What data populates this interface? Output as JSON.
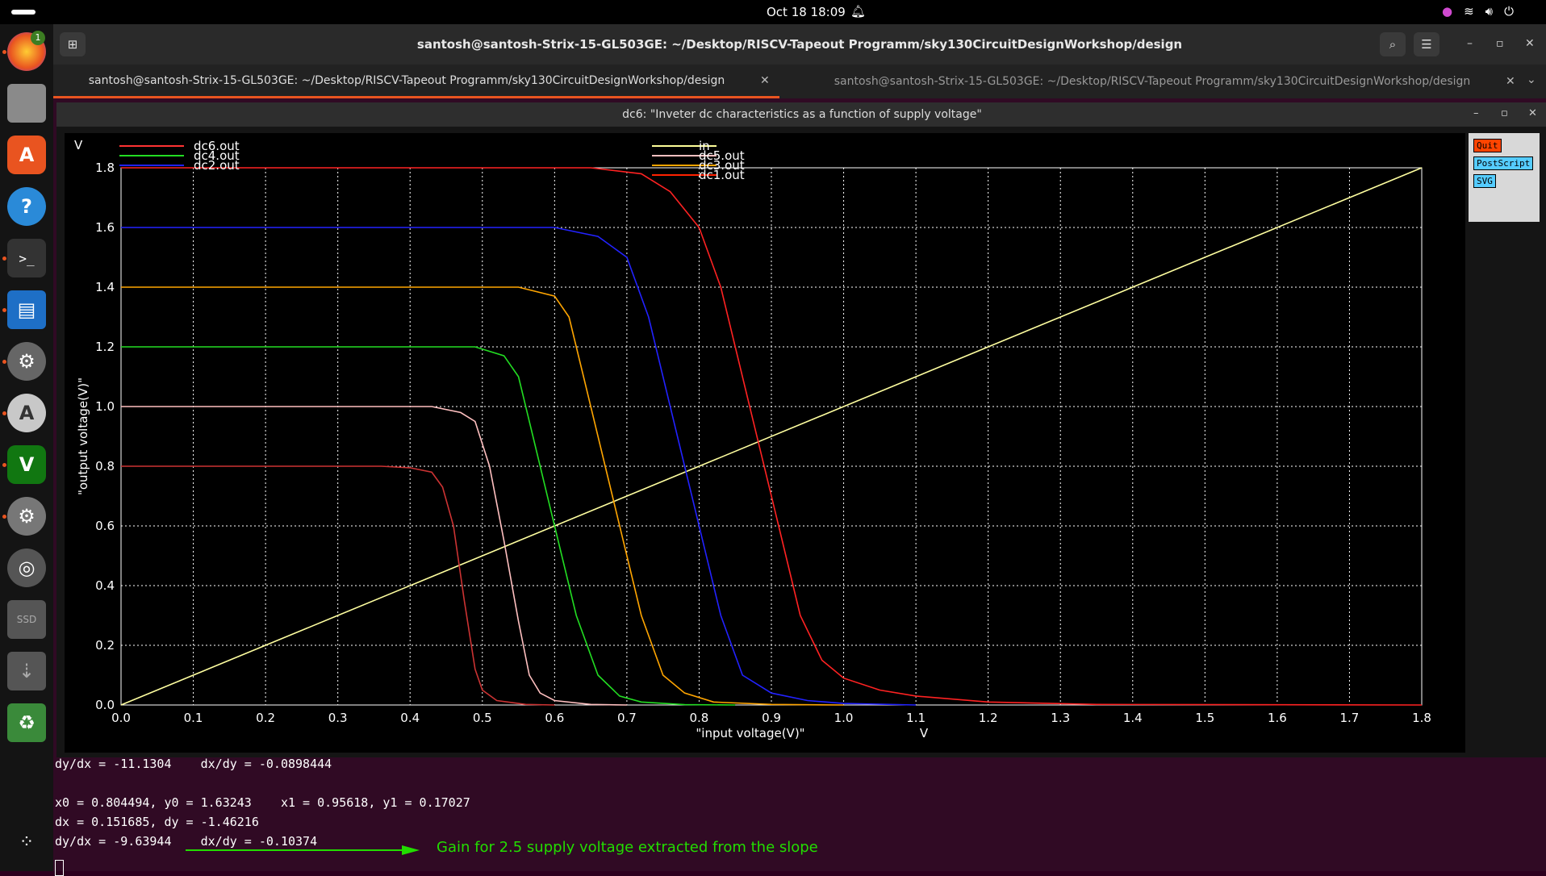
{
  "topbar": {
    "clock": "Oct 18  18:09"
  },
  "dock": {
    "notification_badge": "1",
    "items": [
      "firefox-icon",
      "files-icon",
      "app-center-icon",
      "help-icon",
      "terminal-icon",
      "writer-icon",
      "settings-gear-icon",
      "archive-icon",
      "vim-icon",
      "settings-icon",
      "disc-icon",
      "ssd-icon",
      "usb-icon",
      "trash-icon",
      "apps-grid-icon"
    ],
    "ssd_label": "SSD"
  },
  "terminal": {
    "title": "santosh@santosh-Strix-15-GL503GE: ~/Desktop/RISCV-Tapeout Programm/sky130CircuitDesignWorkshop/design",
    "tabs": [
      "santosh@santosh-Strix-15-GL503GE: ~/Desktop/RISCV-Tapeout Programm/sky130CircuitDesignWorkshop/design",
      "santosh@santosh-Strix-15-GL503GE: ~/Desktop/RISCV-Tapeout Programm/sky130CircuitDesignWorkshop/design"
    ],
    "lines": [
      "dy/dx = -11.1304    dx/dy = -0.0898444",
      "",
      "x0 = 0.804494, y0 = 1.63243    x1 = 0.95618, y1 = 0.17027",
      "dx = 0.151685, dy = -1.46216",
      "dy/dx = -9.63944    dx/dy = -0.10374"
    ],
    "annotation": "Gain for 2.5 supply voltage extracted from the slope",
    "annotation_color": "#22dd00"
  },
  "plot_window": {
    "title": "dc6: \"Inveter dc characteristics as a function of supply voltage\"",
    "buttons": {
      "quit": "Quit",
      "postscript": "PostScript",
      "svg": "SVG"
    }
  },
  "chart_data": {
    "type": "line",
    "xlabel": "\"input voltage(V)\"",
    "ylabel": "\"output voltage(V)\"",
    "x_unit": "V",
    "y_unit": "V",
    "xlim": [
      0,
      1.8
    ],
    "ylim": [
      0,
      1.8
    ],
    "grid": true,
    "x_ticks": [
      "0.0",
      "0.1",
      "0.2",
      "0.3",
      "0.4",
      "0.5",
      "0.6",
      "0.7",
      "0.8",
      "0.9",
      "1.0",
      "1.1",
      "1.2",
      "1.3",
      "1.4",
      "1.5",
      "1.6",
      "1.7",
      "1.8"
    ],
    "y_ticks": [
      "0.0",
      "0.2",
      "0.4",
      "0.6",
      "0.8",
      "1.0",
      "1.2",
      "1.4",
      "1.6",
      "1.8"
    ],
    "legend_left": [
      {
        "name": "dc6.out",
        "color": "#ff3333"
      },
      {
        "name": "dc4.out",
        "color": "#22dd22"
      },
      {
        "name": "dc2.out",
        "color": "#2222ff"
      }
    ],
    "legend_right": [
      {
        "name": "in",
        "color": "#ffff99"
      },
      {
        "name": "dc5.out",
        "color": "#ffc0c0"
      },
      {
        "name": "dc3.out",
        "color": "#ffa500"
      },
      {
        "name": "dc1.out",
        "color": "#ff2200"
      }
    ],
    "series": [
      {
        "name": "in",
        "color": "#ffffa0",
        "points": [
          [
            0,
            0
          ],
          [
            1.8,
            1.8
          ]
        ]
      },
      {
        "name": "dc6.out",
        "color": "#cc3333",
        "points": [
          [
            0,
            0.8
          ],
          [
            0.36,
            0.8
          ],
          [
            0.4,
            0.795
          ],
          [
            0.43,
            0.78
          ],
          [
            0.445,
            0.73
          ],
          [
            0.46,
            0.6
          ],
          [
            0.475,
            0.35
          ],
          [
            0.49,
            0.12
          ],
          [
            0.5,
            0.05
          ],
          [
            0.52,
            0.015
          ],
          [
            0.56,
            0.002
          ],
          [
            0.6,
            0
          ]
        ]
      },
      {
        "name": "dc5.out",
        "color": "#ffc0c0",
        "points": [
          [
            0,
            1.0
          ],
          [
            0.43,
            1.0
          ],
          [
            0.47,
            0.98
          ],
          [
            0.49,
            0.95
          ],
          [
            0.51,
            0.8
          ],
          [
            0.53,
            0.55
          ],
          [
            0.55,
            0.28
          ],
          [
            0.565,
            0.1
          ],
          [
            0.58,
            0.04
          ],
          [
            0.6,
            0.015
          ],
          [
            0.65,
            0.002
          ],
          [
            0.7,
            0
          ]
        ]
      },
      {
        "name": "dc4.out",
        "color": "#22dd22",
        "points": [
          [
            0,
            1.2
          ],
          [
            0.49,
            1.2
          ],
          [
            0.53,
            1.17
          ],
          [
            0.55,
            1.1
          ],
          [
            0.57,
            0.9
          ],
          [
            0.6,
            0.6
          ],
          [
            0.63,
            0.3
          ],
          [
            0.66,
            0.1
          ],
          [
            0.69,
            0.03
          ],
          [
            0.72,
            0.01
          ],
          [
            0.78,
            0.001
          ],
          [
            0.85,
            0
          ]
        ]
      },
      {
        "name": "dc3.out",
        "color": "#ffa500",
        "points": [
          [
            0,
            1.4
          ],
          [
            0.55,
            1.4
          ],
          [
            0.6,
            1.37
          ],
          [
            0.62,
            1.3
          ],
          [
            0.64,
            1.1
          ],
          [
            0.68,
            0.7
          ],
          [
            0.72,
            0.3
          ],
          [
            0.75,
            0.1
          ],
          [
            0.78,
            0.04
          ],
          [
            0.82,
            0.01
          ],
          [
            0.9,
            0.002
          ],
          [
            1.0,
            0
          ]
        ]
      },
      {
        "name": "dc2.out",
        "color": "#2222ff",
        "points": [
          [
            0,
            1.6
          ],
          [
            0.6,
            1.6
          ],
          [
            0.66,
            1.57
          ],
          [
            0.7,
            1.5
          ],
          [
            0.73,
            1.3
          ],
          [
            0.78,
            0.8
          ],
          [
            0.83,
            0.3
          ],
          [
            0.86,
            0.1
          ],
          [
            0.9,
            0.04
          ],
          [
            0.95,
            0.015
          ],
          [
            1.0,
            0.005
          ],
          [
            1.1,
            0
          ]
        ]
      },
      {
        "name": "dc1.out",
        "color": "#ff2222",
        "points": [
          [
            0,
            1.8
          ],
          [
            0.65,
            1.8
          ],
          [
            0.72,
            1.78
          ],
          [
            0.76,
            1.72
          ],
          [
            0.8,
            1.6
          ],
          [
            0.83,
            1.4
          ],
          [
            0.87,
            1.0
          ],
          [
            0.91,
            0.6
          ],
          [
            0.94,
            0.3
          ],
          [
            0.97,
            0.15
          ],
          [
            1.0,
            0.09
          ],
          [
            1.05,
            0.05
          ],
          [
            1.1,
            0.03
          ],
          [
            1.2,
            0.01
          ],
          [
            1.35,
            0.002
          ],
          [
            1.8,
            0
          ]
        ]
      }
    ]
  }
}
